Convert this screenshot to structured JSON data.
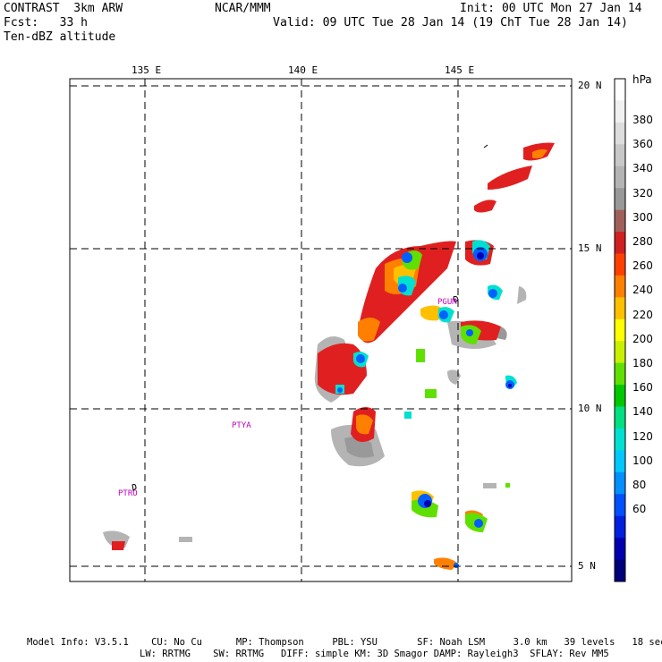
{
  "header": {
    "left_line1": "CONTRAST  3km ARW",
    "left_line2": "Fcst:   33 h",
    "left_line3": "Ten-dBZ altitude",
    "center_line1": "NCAR/MMM",
    "right_line1": "Init: 00 UTC Mon 27 Jan 14",
    "right_line2": "Valid: 09 UTC Tue 28 Jan 14 (19 ChT Tue 28 Jan 14)"
  },
  "map": {
    "lon_labels": [
      "135 E",
      "140 E",
      "145 E"
    ],
    "lat_labels": [
      "20 N",
      "15 N",
      "10 N",
      "5 N"
    ],
    "stations": [
      "PGUM",
      "PTYA",
      "PTRO"
    ]
  },
  "legend": {
    "unit": "hPa",
    "labels": [
      "380",
      "360",
      "340",
      "320",
      "300",
      "280",
      "260",
      "240",
      "220",
      "200",
      "180",
      "160",
      "140",
      "120",
      "100",
      "80",
      "60"
    ],
    "colors": [
      "#ffffff",
      "#f0f0f0",
      "#dddddd",
      "#c8c8c8",
      "#b4b4b4",
      "#999999",
      "#a0605a",
      "#d02020",
      "#ff4000",
      "#ff8000",
      "#ffc000",
      "#ffff00",
      "#c8f000",
      "#60e000",
      "#00c800",
      "#00e080",
      "#00e0d0",
      "#00c8ff",
      "#0090ff",
      "#0050ff",
      "#0020e0",
      "#0000b0",
      "#00007a"
    ]
  },
  "footer": {
    "line1": "Model Info: V3.5.1    CU: No Cu      MP: Thompson     PBL: YSU       SF: Noah LSM     3.0 km   39 levels   18 sec",
    "line2": "LW: RRTMG    SW: RRTMG   DIFF: simple KM: 3D Smagor DAMP: Rayleigh3  SFLAY: Rev MM5"
  }
}
